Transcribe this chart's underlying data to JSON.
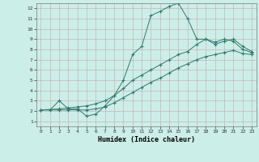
{
  "xlabel": "Humidex (Indice chaleur)",
  "bg_color": "#cceee8",
  "line_color": "#2d7a6e",
  "grid_color": "#c8b4b4",
  "xlim": [
    -0.5,
    23.5
  ],
  "ylim": [
    0.5,
    12.5
  ],
  "xticks": [
    0,
    1,
    2,
    3,
    4,
    5,
    6,
    7,
    8,
    9,
    10,
    11,
    12,
    13,
    14,
    15,
    16,
    17,
    18,
    19,
    20,
    21,
    22,
    23
  ],
  "yticks": [
    1,
    2,
    3,
    4,
    5,
    6,
    7,
    8,
    9,
    10,
    11,
    12
  ],
  "line1_x": [
    0,
    1,
    2,
    3,
    4,
    5,
    6,
    7,
    8,
    9,
    10,
    11,
    12,
    13,
    14,
    15,
    16,
    17,
    18,
    19,
    20,
    21,
    22,
    23
  ],
  "line1_y": [
    2.1,
    2.1,
    3.0,
    2.2,
    2.2,
    1.5,
    1.7,
    2.5,
    3.5,
    5.0,
    7.5,
    8.3,
    11.3,
    11.7,
    12.2,
    12.5,
    11.0,
    9.0,
    9.0,
    8.7,
    9.0,
    8.8,
    8.0,
    7.7
  ],
  "line2_x": [
    0,
    2,
    3,
    4,
    5,
    6,
    7,
    8,
    9,
    10,
    11,
    12,
    13,
    14,
    15,
    16,
    17,
    18,
    19,
    20,
    21,
    22,
    23
  ],
  "line2_y": [
    2.1,
    2.2,
    2.3,
    2.4,
    2.5,
    2.7,
    3.0,
    3.5,
    4.2,
    5.0,
    5.5,
    6.0,
    6.5,
    7.0,
    7.5,
    7.8,
    8.5,
    9.0,
    8.5,
    8.8,
    9.0,
    8.3,
    7.8
  ],
  "line3_x": [
    0,
    2,
    3,
    4,
    5,
    6,
    7,
    8,
    9,
    10,
    11,
    12,
    13,
    14,
    15,
    16,
    17,
    18,
    19,
    20,
    21,
    22,
    23
  ],
  "line3_y": [
    2.1,
    2.1,
    2.1,
    2.1,
    2.1,
    2.2,
    2.4,
    2.8,
    3.3,
    3.8,
    4.3,
    4.8,
    5.2,
    5.7,
    6.2,
    6.6,
    7.0,
    7.3,
    7.5,
    7.7,
    7.9,
    7.6,
    7.5
  ]
}
